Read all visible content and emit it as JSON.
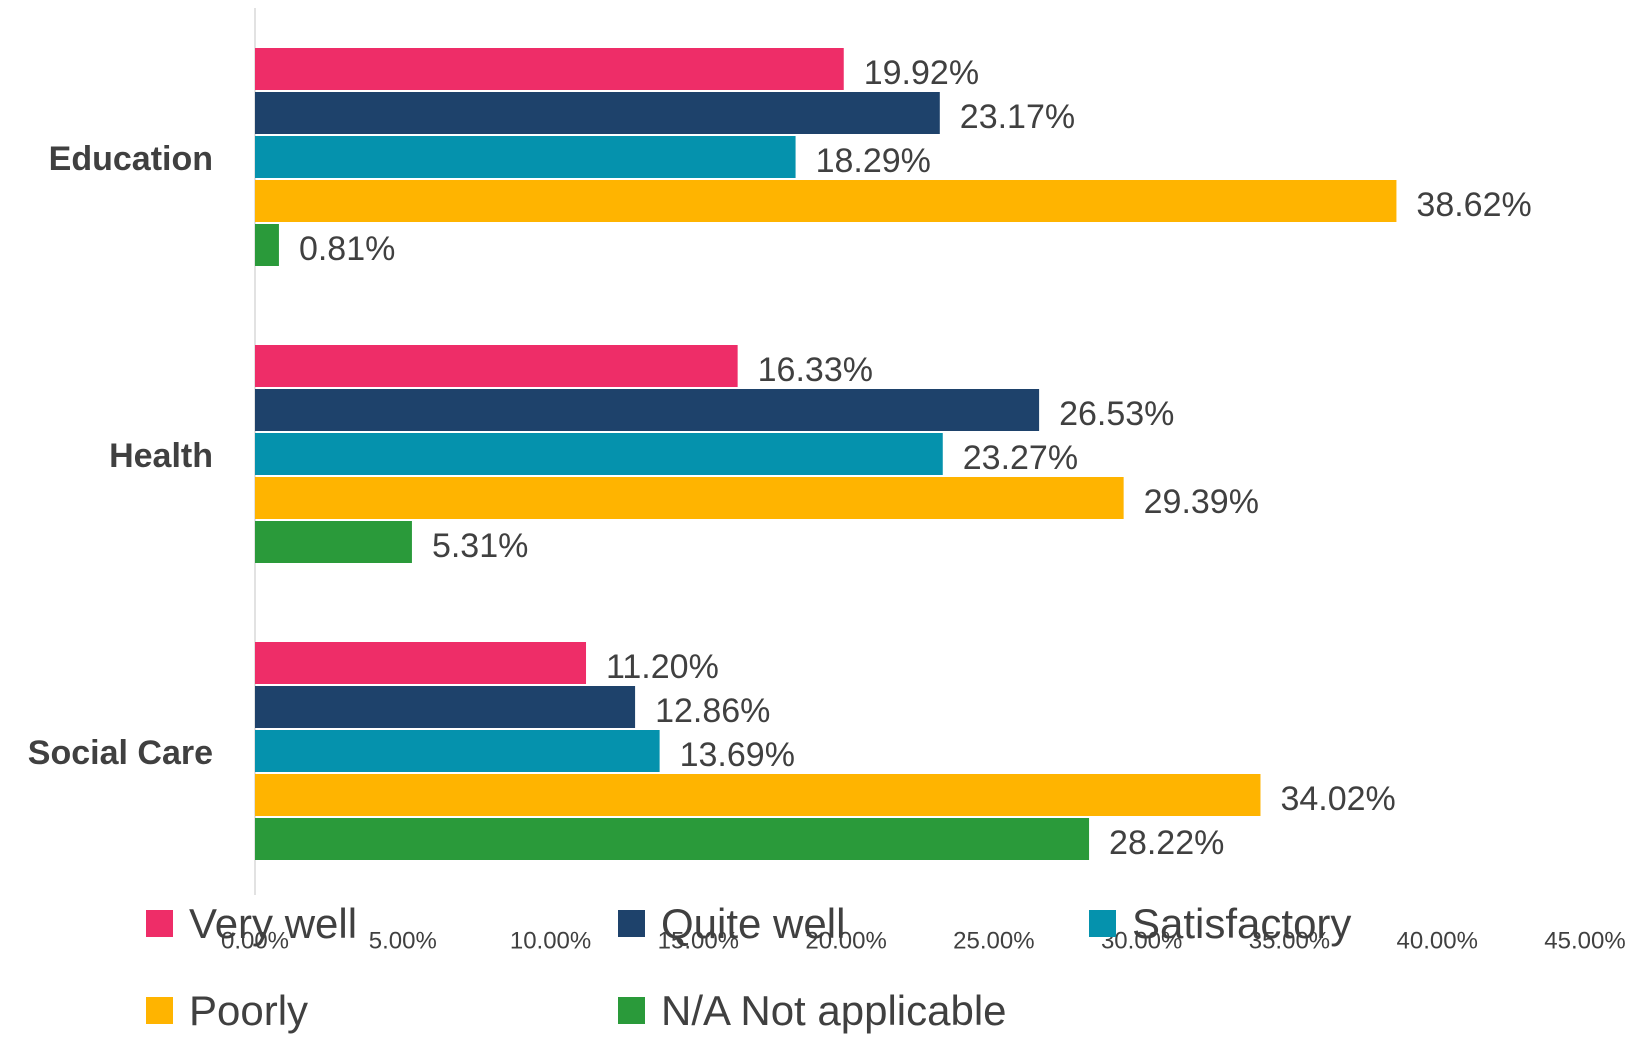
{
  "chart_data": {
    "type": "bar",
    "orientation": "horizontal",
    "categories": [
      "Education",
      "Health",
      "Social Care"
    ],
    "series": [
      {
        "name": "Very well",
        "color": "#EE2D68",
        "values": [
          19.92,
          16.33,
          11.2
        ],
        "value_labels": [
          "19.92%",
          "16.33%",
          "11.20%"
        ]
      },
      {
        "name": "Quite well",
        "color": "#1E426B",
        "values": [
          23.17,
          26.53,
          12.86
        ],
        "value_labels": [
          "23.17%",
          "26.53%",
          "12.86%"
        ]
      },
      {
        "name": "Satisfactory",
        "color": "#0592AD",
        "values": [
          18.29,
          23.27,
          13.69
        ],
        "value_labels": [
          "18.29%",
          "23.27%",
          "13.69%"
        ]
      },
      {
        "name": "Poorly",
        "color": "#FFB400",
        "values": [
          38.62,
          29.39,
          34.02
        ],
        "value_labels": [
          "38.62%",
          "29.39%",
          "34.02%"
        ]
      },
      {
        "name": "N/A Not applicable",
        "color": "#2A9A3A",
        "values": [
          0.81,
          5.31,
          28.22
        ],
        "value_labels": [
          "0.81%",
          "5.31%",
          "28.22%"
        ]
      }
    ],
    "xlim": [
      0,
      45
    ],
    "xticks": [
      {
        "value": 0,
        "label": "0.00%"
      },
      {
        "value": 5,
        "label": "5.00%"
      },
      {
        "value": 10,
        "label": "10.00%"
      },
      {
        "value": 15,
        "label": "15.00%"
      },
      {
        "value": 20,
        "label": "20.00%"
      },
      {
        "value": 25,
        "label": "25.00%"
      },
      {
        "value": 30,
        "label": "30.00%"
      },
      {
        "value": 35,
        "label": "35.00%"
      },
      {
        "value": 40,
        "label": "40.00%"
      },
      {
        "value": 45,
        "label": "45.00%"
      }
    ],
    "grid": false,
    "legend": "bottom"
  }
}
